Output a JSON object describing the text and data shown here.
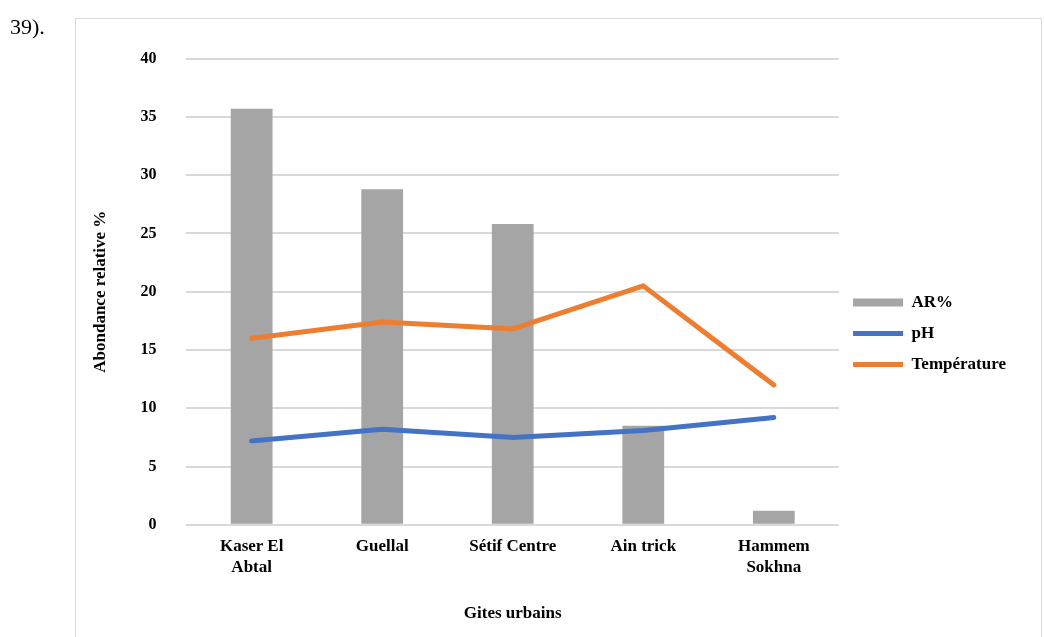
{
  "chart_data": {
    "type": "bar",
    "categories": [
      "Kaser El Abtal",
      "Guellal",
      "Sétif Centre",
      "Ain trick",
      "Hammem Sokhna"
    ],
    "series": [
      {
        "name": "AR%",
        "color": "#a5a5a5",
        "values": [
          35.7,
          28.8,
          25.8,
          8.5,
          1.2
        ]
      },
      {
        "name": "pH",
        "type": "line",
        "color": "#4472c4",
        "values": [
          7.2,
          8.2,
          7.5,
          8.1,
          9.2
        ]
      },
      {
        "name": "Température",
        "type": "line",
        "color": "#ed7d31",
        "values": [
          16,
          17.4,
          16.8,
          20.5,
          12
        ]
      }
    ],
    "xlabel": "Gites urbains",
    "ylabel": "Abondance relative %",
    "ylim": [
      0,
      40
    ],
    "yticks": [
      0,
      5,
      10,
      15,
      20,
      25,
      30,
      35,
      40
    ],
    "grid": "y",
    "legend": "right",
    "marker": "none",
    "annotations": [
      "39)."
    ]
  }
}
